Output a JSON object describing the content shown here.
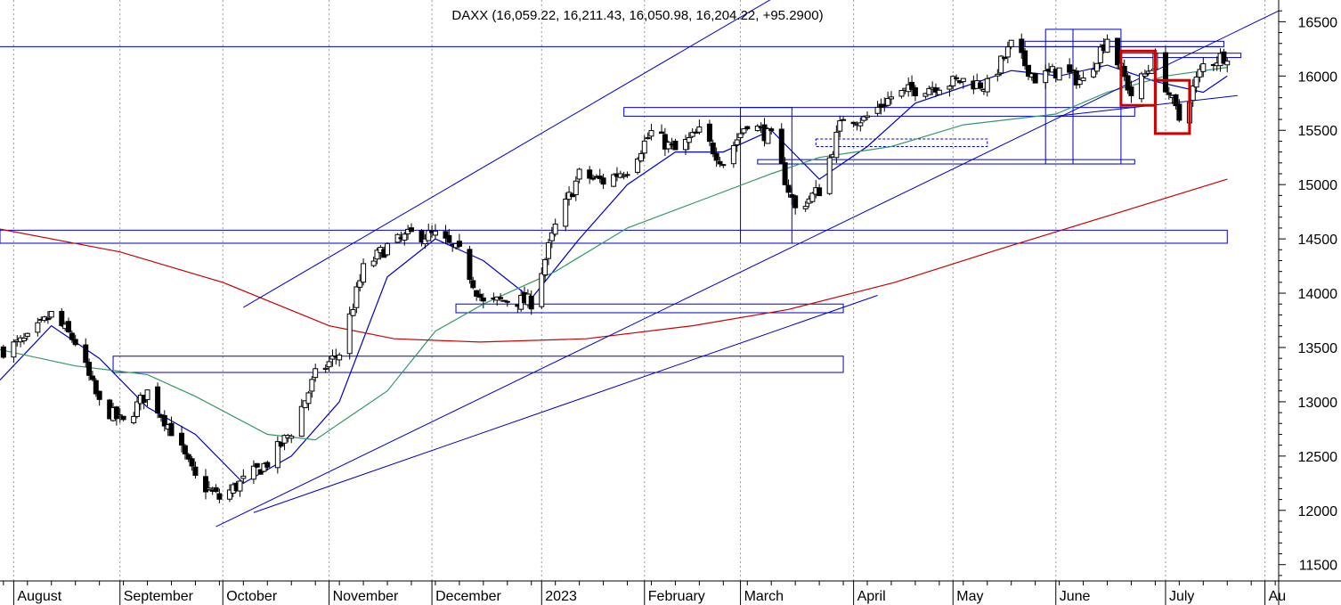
{
  "chart_data": {
    "type": "candlestick",
    "title": "DAXX (16,059.22, 16,211.43, 16,050.98, 16,204.22, +95.2900)",
    "xlabel": "",
    "ylabel": "",
    "ylim": [
      11350,
      16700
    ],
    "yticks": [
      {
        "value": 11500,
        "label": "11500"
      },
      {
        "value": 12000,
        "label": "12000"
      },
      {
        "value": 12500,
        "label": "12500"
      },
      {
        "value": 13000,
        "label": "13000"
      },
      {
        "value": 13500,
        "label": "13500"
      },
      {
        "value": 14000,
        "label": "14000"
      },
      {
        "value": 14500,
        "label": "14500"
      },
      {
        "value": 15000,
        "label": "15000"
      },
      {
        "value": 15500,
        "label": "15500"
      },
      {
        "value": 16000,
        "label": "16000"
      },
      {
        "value": 16500,
        "label": "16500"
      }
    ],
    "months": [
      {
        "label": "August",
        "start": "2022-08-01"
      },
      {
        "label": "September",
        "start": "2022-09-01"
      },
      {
        "label": "October",
        "start": "2022-10-01"
      },
      {
        "label": "November",
        "start": "2022-11-01"
      },
      {
        "label": "December",
        "start": "2022-12-01"
      },
      {
        "label": "2023",
        "start": "2023-01-02"
      },
      {
        "label": "February",
        "start": "2023-02-01"
      },
      {
        "label": "March",
        "start": "2023-03-01"
      },
      {
        "label": "April",
        "start": "2023-04-03"
      },
      {
        "label": "May",
        "start": "2023-05-02"
      },
      {
        "label": "June",
        "start": "2023-06-01"
      },
      {
        "label": "July",
        "start": "2023-07-03"
      },
      {
        "label": "Au",
        "start": "2023-08-01"
      }
    ],
    "date_range": [
      "2022-07-28",
      "2023-08-05"
    ],
    "weekly_close_anchors": [
      [
        "2022-07-29",
        13480
      ],
      [
        "2022-08-05",
        13570
      ],
      [
        "2022-08-12",
        13800
      ],
      [
        "2022-08-19",
        13550
      ],
      [
        "2022-08-26",
        12980
      ],
      [
        "2022-09-02",
        12800
      ],
      [
        "2022-09-09",
        13090
      ],
      [
        "2022-09-16",
        12740
      ],
      [
        "2022-09-23",
        12290
      ],
      [
        "2022-09-30",
        12110
      ],
      [
        "2022-10-07",
        12270
      ],
      [
        "2022-10-14",
        12440
      ],
      [
        "2022-10-21",
        12730
      ],
      [
        "2022-10-28",
        13240
      ],
      [
        "2022-11-04",
        13450
      ],
      [
        "2022-11-11",
        14220
      ],
      [
        "2022-11-18",
        14430
      ],
      [
        "2022-11-25",
        14540
      ],
      [
        "2022-12-02",
        14530
      ],
      [
        "2022-12-09",
        14370
      ],
      [
        "2022-12-16",
        13900
      ],
      [
        "2022-12-23",
        13940
      ],
      [
        "2022-12-30",
        13920
      ],
      [
        "2023-01-06",
        14610
      ],
      [
        "2023-01-13",
        15090
      ],
      [
        "2023-01-20",
        15030
      ],
      [
        "2023-01-27",
        15150
      ],
      [
        "2023-02-03",
        15480
      ],
      [
        "2023-02-10",
        15310
      ],
      [
        "2023-02-17",
        15480
      ],
      [
        "2023-02-24",
        15210
      ],
      [
        "2023-03-03",
        15580
      ],
      [
        "2023-03-10",
        15430
      ],
      [
        "2023-03-17",
        14770
      ],
      [
        "2023-03-24",
        14950
      ],
      [
        "2023-03-31",
        15630
      ],
      [
        "2023-04-06",
        15600
      ],
      [
        "2023-04-14",
        15810
      ],
      [
        "2023-04-21",
        15880
      ],
      [
        "2023-04-28",
        15920
      ],
      [
        "2023-05-05",
        15960
      ],
      [
        "2023-05-12",
        15910
      ],
      [
        "2023-05-19",
        16280
      ],
      [
        "2023-05-26",
        15980
      ],
      [
        "2023-06-02",
        16050
      ],
      [
        "2023-06-09",
        15950
      ],
      [
        "2023-06-16",
        16360
      ],
      [
        "2023-06-23",
        15830
      ],
      [
        "2023-06-30",
        16150
      ],
      [
        "2023-07-07",
        15600
      ],
      [
        "2023-07-14",
        16100
      ],
      [
        "2023-07-21",
        16204
      ]
    ],
    "moving_averages": [
      {
        "color": "#0000cc",
        "points": [
          [
            "2022-07-28",
            13200
          ],
          [
            "2022-08-12",
            13700
          ],
          [
            "2022-08-26",
            13400
          ],
          [
            "2022-09-09",
            12950
          ],
          [
            "2022-09-23",
            12700
          ],
          [
            "2022-10-07",
            12250
          ],
          [
            "2022-10-21",
            12500
          ],
          [
            "2022-11-04",
            13000
          ],
          [
            "2022-11-18",
            14150
          ],
          [
            "2022-12-02",
            14500
          ],
          [
            "2022-12-16",
            14300
          ],
          [
            "2022-12-30",
            13950
          ],
          [
            "2023-01-13",
            14500
          ],
          [
            "2023-01-27",
            15000
          ],
          [
            "2023-02-10",
            15300
          ],
          [
            "2023-02-24",
            15300
          ],
          [
            "2023-03-10",
            15500
          ],
          [
            "2023-03-24",
            15050
          ],
          [
            "2023-04-07",
            15350
          ],
          [
            "2023-04-21",
            15750
          ],
          [
            "2023-05-05",
            15900
          ],
          [
            "2023-05-19",
            16050
          ],
          [
            "2023-06-02",
            16000
          ],
          [
            "2023-06-16",
            16100
          ],
          [
            "2023-06-30",
            15950
          ],
          [
            "2023-07-14",
            15850
          ],
          [
            "2023-07-21",
            16000
          ]
        ]
      },
      {
        "color": "#339966",
        "points": [
          [
            "2022-07-28",
            13480
          ],
          [
            "2022-08-19",
            13330
          ],
          [
            "2022-09-09",
            13250
          ],
          [
            "2022-09-23",
            13050
          ],
          [
            "2022-10-14",
            12700
          ],
          [
            "2022-10-28",
            12650
          ],
          [
            "2022-11-18",
            13100
          ],
          [
            "2022-12-02",
            13650
          ],
          [
            "2022-12-16",
            13900
          ],
          [
            "2023-01-06",
            14200
          ],
          [
            "2023-01-27",
            14600
          ],
          [
            "2023-02-17",
            14850
          ],
          [
            "2023-03-10",
            15100
          ],
          [
            "2023-03-24",
            15250
          ],
          [
            "2023-04-14",
            15350
          ],
          [
            "2023-05-05",
            15550
          ],
          [
            "2023-06-01",
            15650
          ],
          [
            "2023-06-16",
            15850
          ],
          [
            "2023-07-03",
            16000
          ],
          [
            "2023-07-21",
            16080
          ]
        ]
      },
      {
        "color": "#cc0000",
        "points": [
          [
            "2022-07-28",
            14590
          ],
          [
            "2022-09-01",
            14380
          ],
          [
            "2022-10-01",
            14100
          ],
          [
            "2022-11-01",
            13700
          ],
          [
            "2022-11-20",
            13580
          ],
          [
            "2022-12-15",
            13550
          ],
          [
            "2023-01-15",
            13580
          ],
          [
            "2023-02-15",
            13700
          ],
          [
            "2023-03-15",
            13850
          ],
          [
            "2023-04-15",
            14100
          ],
          [
            "2023-05-15",
            14400
          ],
          [
            "2023-06-15",
            14700
          ],
          [
            "2023-07-21",
            15050
          ]
        ]
      }
    ],
    "trendlines": [
      {
        "color": "#0000cc",
        "from": [
          "2022-10-07",
          13870
        ],
        "to": [
          "2023-03-15",
          16800
        ]
      },
      {
        "color": "#0000cc",
        "from": [
          "2022-09-29",
          11850
        ],
        "to": [
          "2023-08-05",
          16600
        ]
      },
      {
        "color": "#0000cc",
        "from": [
          "2022-10-10",
          11980
        ],
        "to": [
          "2023-04-10",
          13980
        ]
      },
      {
        "color": "#0000cc",
        "from": [
          "2023-06-01",
          15630
        ],
        "to": [
          "2023-07-24",
          15820
        ]
      }
    ],
    "horizontal_lines": [
      {
        "color": "#0000cc",
        "value": 16270
      }
    ],
    "boxes": [
      {
        "color": "#0000cc",
        "x": [
          "2022-08-30",
          "2023-03-31"
        ],
        "y": [
          13270,
          13420
        ]
      },
      {
        "color": "#0000cc",
        "x": [
          "2022-07-28",
          "2023-07-21"
        ],
        "y": [
          14460,
          14580
        ]
      },
      {
        "color": "#0000cc",
        "x": [
          "2022-12-08",
          "2023-03-31"
        ],
        "y": [
          13820,
          13900
        ]
      },
      {
        "color": "#0000cc",
        "x": [
          "2023-01-26",
          "2023-06-24"
        ],
        "y": [
          15630,
          15710
        ]
      },
      {
        "color": "#0000cc",
        "x": [
          "2023-03-06",
          "2023-06-24"
        ],
        "y": [
          15190,
          15230
        ]
      },
      {
        "color": "#0000cc",
        "x": [
          "2023-03-01",
          "2023-03-16"
        ],
        "y": [
          14460,
          15710
        ]
      },
      {
        "color": "#0000cc",
        "x": [
          "2023-05-23",
          "2023-07-20"
        ],
        "y": [
          16270,
          16320
        ]
      },
      {
        "color": "#0000cc",
        "x": [
          "2023-06-20",
          "2023-07-25"
        ],
        "y": [
          16170,
          16210
        ]
      },
      {
        "color": "#0000cc",
        "x": [
          "2023-05-29",
          "2023-06-06"
        ],
        "y": [
          15190,
          16430
        ]
      },
      {
        "color": "#0000cc",
        "x": [
          "2023-06-06",
          "2023-06-20"
        ],
        "y": [
          15190,
          16430
        ]
      },
      {
        "color": "#cc0000",
        "x": [
          "2023-06-20",
          "2023-06-30"
        ],
        "y": [
          15730,
          16230
        ]
      },
      {
        "color": "#cc0000",
        "x": [
          "2023-06-30",
          "2023-07-10"
        ],
        "y": [
          15470,
          15960
        ]
      }
    ],
    "dashed_boxes": [
      {
        "color": "#0000cc",
        "x": [
          "2023-03-23",
          "2023-05-12"
        ],
        "y": [
          15350,
          15420
        ]
      }
    ],
    "colors": {
      "up": "#ffffff",
      "down": "#000000",
      "wick": "#000000",
      "grid": "#999999",
      "frame": "#000000"
    },
    "grid": true
  }
}
